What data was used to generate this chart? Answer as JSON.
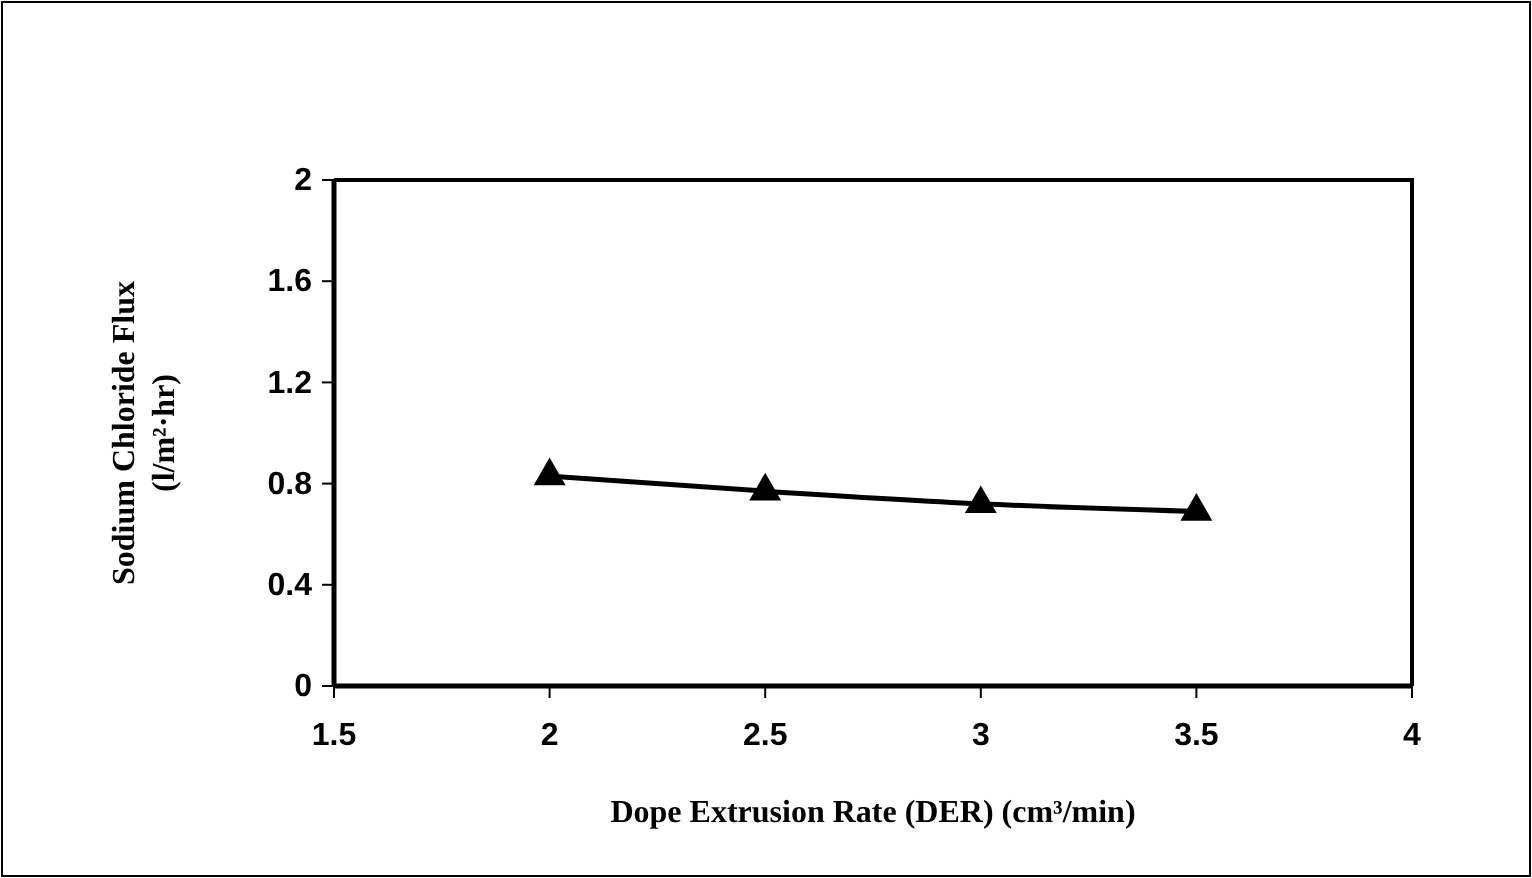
{
  "chart_data": {
    "type": "line",
    "xlabel": "Dope Extrusion Rate (DER) (cm³/min)",
    "ylabel": "Sodium Chloride Flux (l/m²·hr)",
    "x": [
      2,
      2.5,
      3,
      3.5
    ],
    "series": [
      {
        "color": "#000000",
        "values": [
          0.83,
          0.77,
          0.72,
          0.69
        ]
      }
    ],
    "xlim": [
      1.5,
      4
    ],
    "xticks": [
      1.5,
      2,
      2.5,
      3,
      3.5,
      4
    ],
    "ylim": [
      0,
      2
    ],
    "yticks": [
      0,
      0.4,
      0.8,
      1.2,
      1.6,
      2
    ],
    "marker": "triangle",
    "line_style": "solid"
  }
}
